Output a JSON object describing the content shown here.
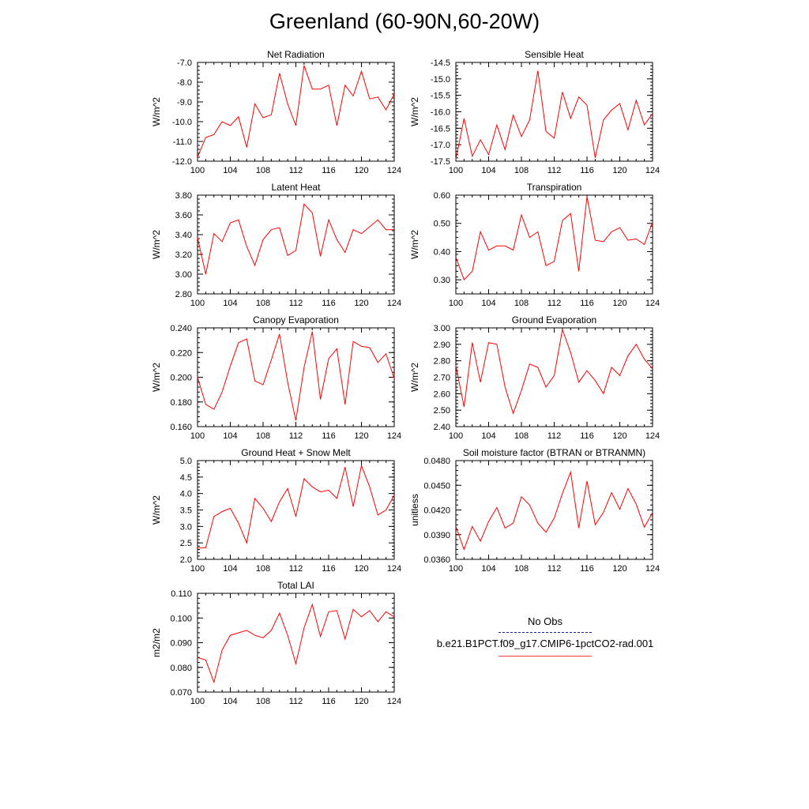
{
  "title": "Greenland (60-90N,60-20W)",
  "legend": {
    "obs_label": "No Obs",
    "case_label": "b.e21.B1PCT.f09_g17.CMIP6-1pctCO2-rad.001",
    "obs_color": "#1a1aa8",
    "case_color": "#ff0000"
  },
  "chart_data": [
    {
      "type": "line",
      "title": "Net Radiation",
      "ylabel": "W/m^2",
      "x": [
        100,
        101,
        102,
        103,
        104,
        105,
        106,
        107,
        108,
        109,
        110,
        111,
        112,
        113,
        114,
        115,
        116,
        117,
        118,
        119,
        120,
        121,
        122,
        123,
        124
      ],
      "xticks": [
        "100",
        "104",
        "108",
        "112",
        "116",
        "120",
        "124"
      ],
      "xlim": [
        100,
        124
      ],
      "ylim": [
        -12.0,
        -7.0
      ],
      "yticks": [
        "-12.0",
        "-11.0",
        "-10.0",
        "-9.0",
        "-8.0",
        "-7.0"
      ],
      "series": [
        {
          "values": [
            -11.8,
            -10.8,
            -10.65,
            -10.0,
            -10.2,
            -9.75,
            -11.3,
            -9.1,
            -9.8,
            -9.65,
            -7.55,
            -9.1,
            -10.2,
            -7.15,
            -8.35,
            -8.35,
            -8.15,
            -10.2,
            -8.15,
            -8.7,
            -7.45,
            -8.85,
            -8.75,
            -9.4,
            -8.6
          ]
        }
      ]
    },
    {
      "type": "line",
      "title": "Sensible Heat",
      "ylabel": "W/m^2",
      "x": [
        100,
        101,
        102,
        103,
        104,
        105,
        106,
        107,
        108,
        109,
        110,
        111,
        112,
        113,
        114,
        115,
        116,
        117,
        118,
        119,
        120,
        121,
        122,
        123,
        124
      ],
      "xticks": [
        "100",
        "104",
        "108",
        "112",
        "116",
        "120",
        "124"
      ],
      "xlim": [
        100,
        124
      ],
      "ylim": [
        -17.5,
        -14.5
      ],
      "yticks": [
        "-17.5",
        "-17.0",
        "-16.5",
        "-16.0",
        "-15.5",
        "-15.0",
        "-14.5"
      ],
      "series": [
        {
          "values": [
            -17.45,
            -16.2,
            -17.35,
            -16.85,
            -17.3,
            -16.4,
            -17.15,
            -16.1,
            -16.75,
            -16.25,
            -14.75,
            -16.6,
            -16.8,
            -15.4,
            -16.2,
            -15.55,
            -15.8,
            -17.4,
            -16.25,
            -15.95,
            -15.75,
            -16.55,
            -15.65,
            -16.4,
            -16.05
          ]
        }
      ]
    },
    {
      "type": "line",
      "title": "Latent Heat",
      "ylabel": "W/m^2",
      "x": [
        100,
        101,
        102,
        103,
        104,
        105,
        106,
        107,
        108,
        109,
        110,
        111,
        112,
        113,
        114,
        115,
        116,
        117,
        118,
        119,
        120,
        121,
        122,
        123,
        124
      ],
      "xticks": [
        "100",
        "104",
        "108",
        "112",
        "116",
        "120",
        "124"
      ],
      "xlim": [
        100,
        124
      ],
      "ylim": [
        2.8,
        3.8
      ],
      "yticks": [
        "2.80",
        "3.00",
        "3.20",
        "3.40",
        "3.60",
        "3.80"
      ],
      "series": [
        {
          "values": [
            3.37,
            3.0,
            3.41,
            3.33,
            3.52,
            3.55,
            3.28,
            3.09,
            3.35,
            3.45,
            3.47,
            3.19,
            3.24,
            3.71,
            3.62,
            3.18,
            3.55,
            3.35,
            3.22,
            3.45,
            3.41,
            3.48,
            3.55,
            3.45,
            3.45
          ]
        }
      ]
    },
    {
      "type": "line",
      "title": "Transpiration",
      "ylabel": "W/m^2",
      "x": [
        100,
        101,
        102,
        103,
        104,
        105,
        106,
        107,
        108,
        109,
        110,
        111,
        112,
        113,
        114,
        115,
        116,
        117,
        118,
        119,
        120,
        121,
        122,
        123,
        124
      ],
      "xticks": [
        "100",
        "104",
        "108",
        "112",
        "116",
        "120",
        "124"
      ],
      "xlim": [
        100,
        124
      ],
      "ylim": [
        0.25,
        0.6
      ],
      "yticks": [
        "0.30",
        "0.40",
        "0.50",
        "0.60"
      ],
      "series": [
        {
          "values": [
            0.38,
            0.3,
            0.33,
            0.47,
            0.405,
            0.42,
            0.42,
            0.405,
            0.53,
            0.45,
            0.47,
            0.35,
            0.365,
            0.51,
            0.535,
            0.33,
            0.595,
            0.44,
            0.435,
            0.47,
            0.485,
            0.44,
            0.445,
            0.425,
            0.505
          ]
        }
      ]
    },
    {
      "type": "line",
      "title": "Canopy Evaporation",
      "ylabel": "W/m^2",
      "x": [
        100,
        101,
        102,
        103,
        104,
        105,
        106,
        107,
        108,
        109,
        110,
        111,
        112,
        113,
        114,
        115,
        116,
        117,
        118,
        119,
        120,
        121,
        122,
        123,
        124
      ],
      "xticks": [
        "100",
        "104",
        "108",
        "112",
        "116",
        "120",
        "124"
      ],
      "xlim": [
        100,
        124
      ],
      "ylim": [
        0.16,
        0.24
      ],
      "yticks": [
        "0.160",
        "0.180",
        "0.200",
        "0.220",
        "0.240"
      ],
      "series": [
        {
          "values": [
            0.2,
            0.178,
            0.174,
            0.188,
            0.209,
            0.228,
            0.231,
            0.197,
            0.194,
            0.214,
            0.235,
            0.196,
            0.165,
            0.208,
            0.237,
            0.182,
            0.215,
            0.223,
            0.178,
            0.229,
            0.225,
            0.224,
            0.212,
            0.219,
            0.199
          ]
        }
      ]
    },
    {
      "type": "line",
      "title": "Ground Evaporation",
      "ylabel": "W/m^2",
      "x": [
        100,
        101,
        102,
        103,
        104,
        105,
        106,
        107,
        108,
        109,
        110,
        111,
        112,
        113,
        114,
        115,
        116,
        117,
        118,
        119,
        120,
        121,
        122,
        123,
        124
      ],
      "xticks": [
        "100",
        "104",
        "108",
        "112",
        "116",
        "120",
        "124"
      ],
      "xlim": [
        100,
        124
      ],
      "ylim": [
        2.4,
        3.0
      ],
      "yticks": [
        "2.40",
        "2.50",
        "2.60",
        "2.70",
        "2.80",
        "2.90",
        "3.00"
      ],
      "series": [
        {
          "values": [
            2.77,
            2.52,
            2.91,
            2.67,
            2.91,
            2.9,
            2.64,
            2.48,
            2.62,
            2.78,
            2.76,
            2.64,
            2.71,
            2.99,
            2.85,
            2.67,
            2.74,
            2.68,
            2.6,
            2.76,
            2.71,
            2.83,
            2.9,
            2.81,
            2.75
          ]
        }
      ]
    },
    {
      "type": "line",
      "title": "Ground Heat + Snow Melt",
      "ylabel": "W/m^2",
      "x": [
        100,
        101,
        102,
        103,
        104,
        105,
        106,
        107,
        108,
        109,
        110,
        111,
        112,
        113,
        114,
        115,
        116,
        117,
        118,
        119,
        120,
        121,
        122,
        123,
        124
      ],
      "xticks": [
        "100",
        "104",
        "108",
        "112",
        "116",
        "120",
        "124"
      ],
      "xlim": [
        100,
        124
      ],
      "ylim": [
        2.0,
        5.0
      ],
      "yticks": [
        "2.0",
        "2.5",
        "3.0",
        "3.5",
        "4.0",
        "4.5",
        "5.0"
      ],
      "series": [
        {
          "values": [
            2.35,
            2.35,
            3.3,
            3.45,
            3.55,
            3.1,
            2.5,
            3.85,
            3.55,
            3.15,
            3.75,
            4.15,
            3.3,
            4.45,
            4.2,
            4.05,
            4.1,
            3.85,
            4.8,
            3.6,
            4.85,
            4.2,
            3.35,
            3.5,
            3.95
          ]
        }
      ]
    },
    {
      "type": "line",
      "title": "Soil moisture factor (BTRAN or BTRANMN)",
      "ylabel": "unitless",
      "x": [
        100,
        101,
        102,
        103,
        104,
        105,
        106,
        107,
        108,
        109,
        110,
        111,
        112,
        113,
        114,
        115,
        116,
        117,
        118,
        119,
        120,
        121,
        122,
        123,
        124
      ],
      "xticks": [
        "100",
        "104",
        "108",
        "112",
        "116",
        "120",
        "124"
      ],
      "xlim": [
        100,
        124
      ],
      "ylim": [
        0.036,
        0.048
      ],
      "yticks": [
        "0.0360",
        "0.0390",
        "0.0420",
        "0.0450",
        "0.0480"
      ],
      "series": [
        {
          "values": [
            0.04,
            0.0372,
            0.04,
            0.0382,
            0.0406,
            0.0423,
            0.0398,
            0.0404,
            0.0436,
            0.0426,
            0.0404,
            0.0393,
            0.041,
            0.044,
            0.0466,
            0.0398,
            0.0455,
            0.0402,
            0.0417,
            0.0441,
            0.0421,
            0.0446,
            0.0427,
            0.0399,
            0.0417
          ]
        }
      ]
    },
    {
      "type": "line",
      "title": "Total LAI",
      "ylabel": "m2/m2",
      "x": [
        100,
        101,
        102,
        103,
        104,
        105,
        106,
        107,
        108,
        109,
        110,
        111,
        112,
        113,
        114,
        115,
        116,
        117,
        118,
        119,
        120,
        121,
        122,
        123,
        124
      ],
      "xticks": [
        "100",
        "104",
        "108",
        "112",
        "116",
        "120",
        "124"
      ],
      "xlim": [
        100,
        124
      ],
      "ylim": [
        0.07,
        0.11
      ],
      "yticks": [
        "0.070",
        "0.080",
        "0.090",
        "0.100",
        "0.110"
      ],
      "series": [
        {
          "values": [
            0.084,
            0.083,
            0.074,
            0.087,
            0.093,
            0.094,
            0.095,
            0.093,
            0.092,
            0.095,
            0.102,
            0.093,
            0.0815,
            0.096,
            0.1055,
            0.0925,
            0.1025,
            0.103,
            0.0915,
            0.1035,
            0.1005,
            0.103,
            0.0985,
            0.1025,
            0.1005
          ]
        }
      ]
    }
  ]
}
